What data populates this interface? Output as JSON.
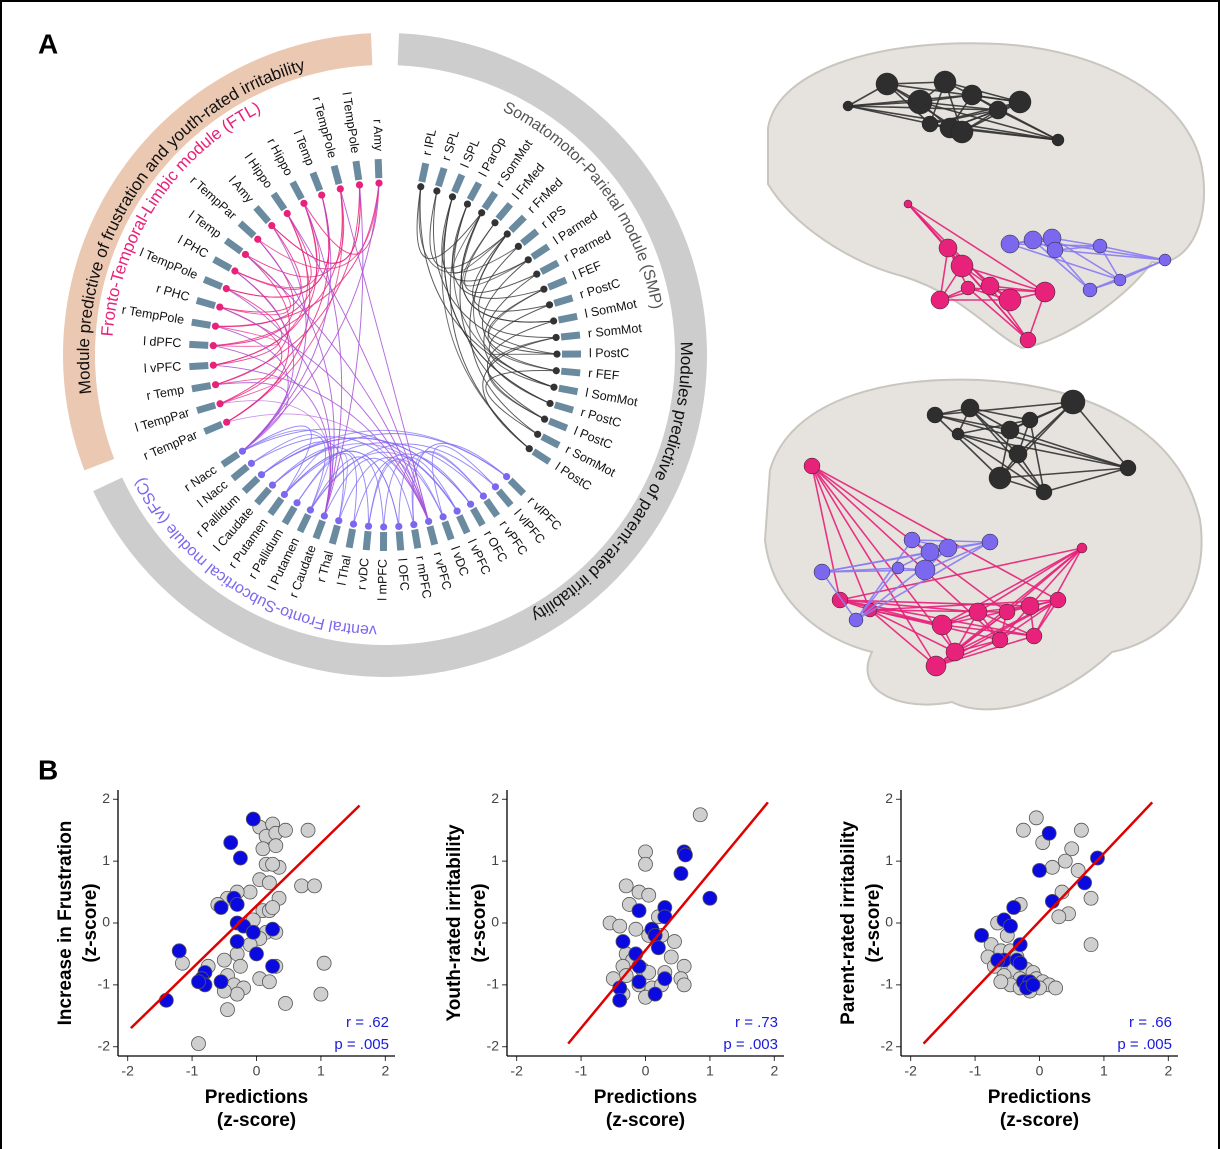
{
  "panel_labels": [
    "A",
    "B"
  ],
  "circle_diagram": {
    "outer_labels": [
      "Module predictive of frustration and youth-rated irritability",
      "Modules predictive of parent-rated irritability"
    ],
    "modules": [
      {
        "name": "Fronto-Temporal-Limbic module (FTL)",
        "color": "#e8217a",
        "nodes": [
          "r Amy",
          "l TempPole",
          "r TempPole",
          "l Temp",
          "r Hippo",
          "l Hippo",
          "l Amy",
          "r TempPar",
          "l Temp",
          "l PHC",
          "l TempPole",
          "r PHC",
          "r TempPole",
          "l dPFC",
          "l vPFC",
          "r Temp",
          "l TempPar",
          "r TempPar"
        ]
      },
      {
        "name": "Somatomotor-Parietal module (SMP)",
        "color": "#555555",
        "nodes": [
          "r IPL",
          "r SPL",
          "l SPL",
          "l ParOp",
          "r SomMot",
          "l FrMed",
          "r FrMed",
          "r IPS",
          "l Parmed",
          "r Parmed",
          "l FEF",
          "r PostC",
          "l SomMot",
          "r SomMot",
          "l PostC",
          "r FEF",
          "l SomMot",
          "r PostC",
          "l PostC",
          "r SomMot",
          "l PostC"
        ]
      },
      {
        "name": "ventral Fronto-Subcortical module (vFSC)",
        "color": "#7b68ee",
        "nodes": [
          "r Nacc",
          "l Nacc",
          "r Pallidum",
          "l Caudate",
          "r Putamen",
          "r Pallidum",
          "l Putamen",
          "r Caudate",
          "r Thal",
          "l Thal",
          "r vDC",
          "l mPFC",
          "l OFC",
          "r mPFC",
          "r vPFC",
          "l vDC",
          "l vPFC",
          "r OFC",
          "r vPFC",
          "l vlPFC",
          "r vlPFC"
        ]
      }
    ]
  },
  "chart_data": [
    {
      "type": "scatter",
      "ylabel": [
        "Increase in Frustration",
        "(z-score)"
      ],
      "xlabel": [
        "Predictions",
        "(z-score)"
      ],
      "xlim": [
        -2.15,
        2.15
      ],
      "ylim": [
        -2.15,
        2.15
      ],
      "xticks": [
        -2,
        -1,
        0,
        1,
        2
      ],
      "yticks": [
        -2,
        -1,
        0,
        1,
        2
      ],
      "annotations": [
        "r = .62",
        "p = .005"
      ],
      "annotation_color": "#1a1adb",
      "fit_line": {
        "color": "#e00000",
        "x": [
          -1.95,
          1.6
        ],
        "values": [
          -1.7,
          1.9
        ]
      },
      "series": [
        {
          "color": "#cfcfcf",
          "x": [
            0.05,
            0.15,
            0.25,
            0.3,
            0.45,
            0.8,
            0.1,
            0.3,
            0.05,
            0.2,
            0.35,
            0.15,
            0.25,
            -0.1,
            -0.3,
            -0.45,
            -0.6,
            0.7,
            0.35,
            0.1,
            0.2,
            0.25,
            -0.05,
            0.15,
            0.3,
            0.05,
            -0.1,
            -0.3,
            -0.25,
            0.3,
            -0.5,
            -0.45,
            -0.35,
            -0.2,
            -0.3,
            -0.5,
            -0.75,
            0.05,
            0.2,
            -1.15,
            -0.45,
            0.45,
            1.0,
            1.05,
            -0.9,
            0.9
          ],
          "values": [
            1.55,
            1.4,
            1.6,
            1.45,
            1.5,
            1.5,
            1.2,
            1.25,
            0.7,
            0.65,
            0.9,
            0.95,
            0.95,
            0.5,
            0.5,
            0.4,
            0.3,
            0.6,
            0.4,
            0.2,
            0.2,
            0.25,
            0.05,
            -0.15,
            -0.15,
            -0.25,
            -0.35,
            -0.5,
            -0.7,
            -0.7,
            -0.6,
            -0.85,
            -1.0,
            -1.05,
            -1.15,
            -1.1,
            -0.7,
            -0.9,
            -0.95,
            -0.65,
            -1.4,
            -1.3,
            -1.15,
            -0.65,
            -1.95,
            0.6
          ]
        },
        {
          "color": "#0a0ae0",
          "x": [
            -0.05,
            -0.4,
            -0.25,
            -0.35,
            -0.3,
            -0.55,
            -0.3,
            -0.2,
            -0.05,
            0.25,
            -0.3,
            0.0,
            0.25,
            -1.2,
            -0.8,
            -0.85,
            -0.8,
            -0.55,
            -0.9,
            -1.4
          ],
          "values": [
            1.68,
            1.3,
            1.05,
            0.4,
            0.3,
            0.25,
            0.0,
            -0.05,
            -0.15,
            -0.1,
            -0.3,
            -0.5,
            -0.7,
            -0.45,
            -0.8,
            -0.9,
            -1.0,
            -0.95,
            -0.95,
            -1.25
          ]
        }
      ]
    },
    {
      "type": "scatter",
      "ylabel": [
        "Youth-rated irritability",
        "(z-score)"
      ],
      "xlabel": [
        "Predictions",
        "(z-score)"
      ],
      "xlim": [
        -2.15,
        2.15
      ],
      "ylim": [
        -2.15,
        2.15
      ],
      "xticks": [
        -2,
        -1,
        0,
        1,
        2
      ],
      "yticks": [
        -2,
        -1,
        0,
        1,
        2
      ],
      "annotations": [
        "r = .73",
        "p = .003"
      ],
      "annotation_color": "#1a1adb",
      "fit_line": {
        "color": "#e00000",
        "x": [
          -1.2,
          1.9
        ],
        "values": [
          -1.95,
          1.95
        ]
      },
      "series": [
        {
          "color": "#cfcfcf",
          "x": [
            0.85,
            0.0,
            0.0,
            -0.3,
            -0.1,
            0.05,
            -0.25,
            0.2,
            -0.55,
            -0.4,
            -0.15,
            0.05,
            0.25,
            0.45,
            -0.3,
            -0.2,
            0.4,
            -0.35,
            -0.05,
            0.05,
            0.3,
            0.6,
            0.55,
            -0.3,
            -0.1,
            0.1,
            -0.5,
            -0.35,
            0.0,
            0.25,
            0.6
          ],
          "values": [
            1.75,
            1.15,
            0.95,
            0.6,
            0.5,
            0.45,
            0.3,
            0.1,
            0.0,
            -0.05,
            -0.1,
            -0.2,
            -0.2,
            -0.3,
            -0.5,
            -0.6,
            -0.55,
            -0.7,
            -0.75,
            -0.8,
            -0.8,
            -0.7,
            -0.9,
            -0.85,
            -1.0,
            -1.05,
            -0.9,
            -1.15,
            -1.2,
            -1.0,
            -1.0
          ]
        },
        {
          "color": "#0a0ae0",
          "x": [
            -0.1,
            0.6,
            0.62,
            0.55,
            1.0,
            0.3,
            0.3,
            0.1,
            0.15,
            -0.35,
            -0.15,
            -0.1,
            0.2,
            0.3,
            -0.4,
            -0.4,
            -0.1,
            0.15
          ],
          "values": [
            0.2,
            1.15,
            1.1,
            0.8,
            0.4,
            0.25,
            0.1,
            -0.1,
            -0.2,
            -0.3,
            -0.5,
            -0.7,
            -0.4,
            -0.9,
            -1.05,
            -1.25,
            -0.95,
            -1.15
          ]
        }
      ]
    },
    {
      "type": "scatter",
      "ylabel": [
        "Parent-rated irritability",
        "(z-score)"
      ],
      "xlabel": [
        "Predictions",
        "(z-score)"
      ],
      "xlim": [
        -2.15,
        2.15
      ],
      "ylim": [
        -2.15,
        2.15
      ],
      "xticks": [
        -2,
        -1,
        0,
        1,
        2
      ],
      "yticks": [
        -2,
        -1,
        0,
        1,
        2
      ],
      "annotations": [
        "r = .66",
        "p = .005"
      ],
      "annotation_color": "#1a1adb",
      "fit_line": {
        "color": "#e00000",
        "x": [
          -1.8,
          1.75
        ],
        "values": [
          -1.95,
          1.95
        ]
      },
      "series": [
        {
          "color": "#cfcfcf",
          "x": [
            -0.05,
            -0.25,
            0.65,
            0.05,
            0.5,
            0.4,
            0.6,
            0.2,
            0.35,
            0.45,
            0.3,
            0.8,
            0.8,
            -0.3,
            -0.65,
            -0.5,
            -0.75,
            -0.6,
            -0.45,
            -0.35,
            -0.8,
            -0.7,
            -0.4,
            -0.2,
            -0.1,
            -0.55,
            -0.3,
            -0.05,
            0.05,
            0.15,
            0.25,
            -0.45,
            -0.3,
            0.0,
            -0.15,
            -0.6
          ],
          "values": [
            1.7,
            1.5,
            1.5,
            1.3,
            1.2,
            1.0,
            0.85,
            0.9,
            0.5,
            0.15,
            0.1,
            0.4,
            -0.35,
            0.3,
            0.0,
            -0.2,
            -0.35,
            -0.45,
            -0.45,
            -0.55,
            -0.55,
            -0.7,
            -0.75,
            -0.75,
            -0.8,
            -0.85,
            -0.9,
            -0.9,
            -0.95,
            -1.0,
            -1.05,
            -1.0,
            -1.05,
            -1.05,
            -1.1,
            -0.95
          ]
        },
        {
          "color": "#0a0ae0",
          "x": [
            0.15,
            0.0,
            0.9,
            0.7,
            0.2,
            -0.4,
            -0.55,
            -0.9,
            -0.45,
            -0.3,
            -0.55,
            -0.35,
            -0.65,
            -0.3,
            -0.25,
            -0.15,
            -0.2,
            -0.1
          ],
          "values": [
            1.45,
            0.85,
            1.05,
            0.65,
            0.35,
            0.25,
            0.05,
            -0.2,
            -0.05,
            -0.35,
            -0.6,
            -0.6,
            -0.6,
            -0.65,
            -0.95,
            -0.95,
            -1.05,
            -1.0
          ]
        }
      ]
    }
  ]
}
